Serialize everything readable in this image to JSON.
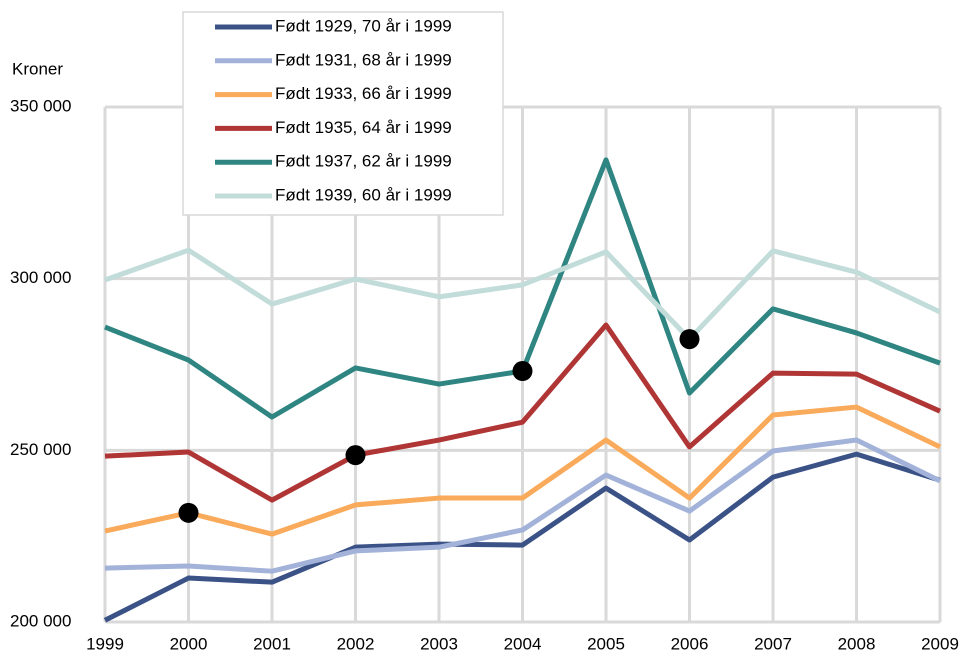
{
  "chart_data": {
    "type": "line",
    "y_axis_label": "Kroner",
    "x": [
      1999,
      2000,
      2001,
      2002,
      2003,
      2004,
      2005,
      2006,
      2007,
      2008,
      2009
    ],
    "xlim": [
      1999,
      2009
    ],
    "xticks": [
      1999,
      2000,
      2001,
      2002,
      2003,
      2004,
      2005,
      2006,
      2007,
      2008,
      2009
    ],
    "ylim": [
      200000,
      350000
    ],
    "yticks": [
      {
        "value": 200000,
        "label": "200 000"
      },
      {
        "value": 250000,
        "label": "250 000"
      },
      {
        "value": 300000,
        "label": "300 000"
      },
      {
        "value": 350000,
        "label": "350 000"
      }
    ],
    "grid": true,
    "legend": "top",
    "series": [
      {
        "name": "Født 1929, 70 år i 1999",
        "color": "#3b5287",
        "values": [
          200500,
          212800,
          211600,
          221800,
          222700,
          222400,
          239000,
          223900,
          242200,
          248900,
          241300
        ]
      },
      {
        "name": "Født 1931, 68 år i 1999",
        "color": "#a2b2d9",
        "values": [
          215700,
          216300,
          214800,
          220700,
          221800,
          226800,
          242800,
          232300,
          249800,
          253000,
          241100
        ]
      },
      {
        "name": "Født 1933, 66 år i 1999",
        "color": "#f9aa5a",
        "values": [
          226500,
          231800,
          225600,
          234100,
          236100,
          236100,
          253000,
          236100,
          260300,
          262600,
          251000
        ]
      },
      {
        "name": "Født 1935, 64 år i 1999",
        "color": "#b03535",
        "values": [
          248300,
          249500,
          235500,
          248600,
          253000,
          258200,
          286500,
          251000,
          272500,
          272200,
          261400
        ]
      },
      {
        "name": "Født 1937, 62 år i 1999",
        "color": "#2e8581",
        "values": [
          285900,
          276300,
          259700,
          274000,
          269300,
          273100,
          334600,
          266700,
          291200,
          284200,
          275400
        ]
      },
      {
        "name": "Født 1939, 60 år i 1999",
        "color": "#c2dcd9",
        "values": [
          299600,
          308300,
          292600,
          299900,
          294700,
          298200,
          307800,
          282400,
          308100,
          301900,
          290300
        ]
      }
    ],
    "markers": [
      {
        "series": 2,
        "index": 1
      },
      {
        "series": 3,
        "index": 3
      },
      {
        "series": 4,
        "index": 5
      },
      {
        "series": 5,
        "index": 7
      }
    ]
  }
}
